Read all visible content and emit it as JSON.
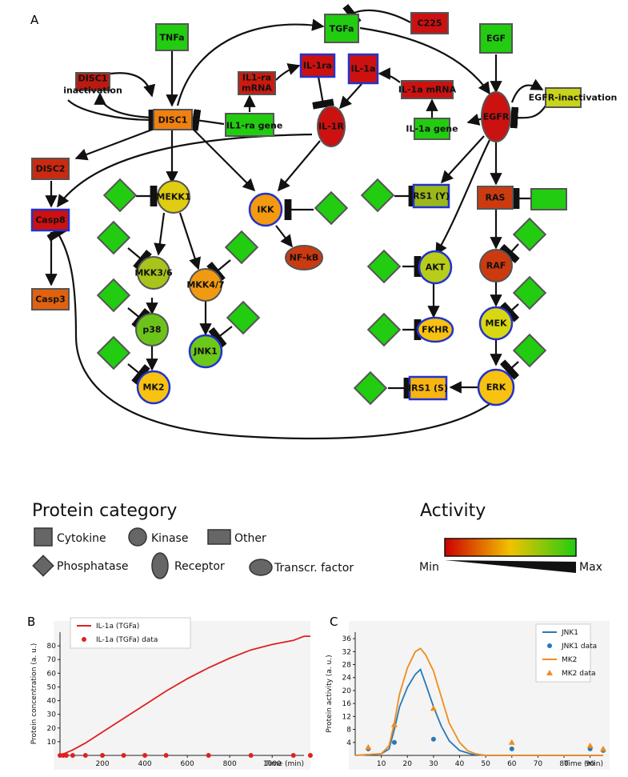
{
  "panels": {
    "a": "A",
    "b": "B",
    "c": "C"
  },
  "nodes": {
    "tnfa": "TNFa",
    "tgfa": "TGFa",
    "c225": "C225",
    "egf": "EGF",
    "disc1_inact": "DISC1\ninactivation",
    "il1ra_mrna": "IL1-ra\nmRNA",
    "il1ra": "IL-1ra",
    "il1a": "IL-1a",
    "il1a_mrna": "IL-1a mRNA",
    "egfr": "EGFR",
    "egfr_inact": "EGFR-inactivation",
    "disc1": "DISC1",
    "il1ra_gene": "IL1-ra gene",
    "il1r": "IL-1R",
    "il1a_gene": "IL-1a gene",
    "disc2": "DISC2",
    "casp8": "Casp8",
    "casp3": "Casp3",
    "mekk1": "MEKK1",
    "ikk": "IKK",
    "nfkb": "NF-kB",
    "irs1y": "IRS1 (Y)",
    "ras": "RAS",
    "mkk36": "MKK3/6",
    "mkk47": "MKK4/7",
    "p38": "p38",
    "jnk1": "JNK1",
    "mk2": "MK2",
    "akt": "AKT",
    "fkhr": "FKHR",
    "raf": "RAF",
    "mek": "MEK",
    "erk": "ERK",
    "irs1s": "IRS1 (S)"
  },
  "legend": {
    "category_title": "Protein category",
    "cytokine": "Cytokine",
    "kinase": "Kinase",
    "other": "Other",
    "phosphatase": "Phosphatase",
    "receptor": "Receptor",
    "tf": "Transcr. factor",
    "activity_title": "Activity",
    "min": "Min",
    "max": "Max"
  },
  "chart_data": [
    {
      "type": "line",
      "title": "",
      "xlabel": "Time (min)",
      "ylabel": "Protein concentration (a. u.)",
      "xlim": [
        0,
        1150
      ],
      "ylim": [
        0,
        90
      ],
      "xticks": [
        200,
        400,
        600,
        800,
        1000
      ],
      "yticks": [
        10,
        20,
        30,
        40,
        50,
        60,
        70,
        80
      ],
      "series": [
        {
          "name": "IL-1a (TGFa)",
          "kind": "line",
          "color": "#e02020",
          "x": [
            0,
            15,
            30,
            60,
            120,
            200,
            300,
            400,
            500,
            600,
            700,
            800,
            900,
            1000,
            1100,
            1150,
            1180
          ],
          "y": [
            0,
            1,
            2,
            4,
            9,
            17,
            27,
            37,
            47,
            56,
            64,
            71,
            77,
            81,
            84,
            87,
            87
          ]
        },
        {
          "name": "IL-1a (TGFa) data",
          "kind": "scatter",
          "color": "#e02020",
          "x": [
            0,
            15,
            30,
            60,
            120,
            200,
            300,
            400,
            500,
            700,
            900,
            1100,
            1180
          ],
          "y": [
            0,
            0,
            0,
            0,
            0,
            0,
            0,
            0,
            0,
            0,
            0,
            0,
            0
          ]
        }
      ]
    },
    {
      "type": "line",
      "title": "",
      "xlabel": "Time (min)",
      "ylabel": "Protein activity (a. u.)",
      "xlim": [
        0,
        95
      ],
      "ylim": [
        0,
        38
      ],
      "xticks": [
        10,
        20,
        30,
        40,
        50,
        60,
        70,
        80,
        90
      ],
      "yticks": [
        4,
        8,
        12,
        16,
        20,
        24,
        28,
        32,
        36
      ],
      "series": [
        {
          "name": "JNK1",
          "kind": "line",
          "color": "#2878b8",
          "x": [
            0,
            10,
            13,
            15,
            17,
            20,
            23,
            25,
            27,
            30,
            33,
            36,
            40,
            45,
            50,
            60,
            90,
            95
          ],
          "y": [
            0,
            0.5,
            2,
            8,
            15,
            21,
            25,
            26.5,
            22,
            15,
            9,
            4.5,
            1.5,
            0.3,
            0,
            0,
            0,
            0
          ]
        },
        {
          "name": "JNK1 data",
          "kind": "scatter",
          "color": "#2878b8",
          "x": [
            5,
            15,
            30,
            60,
            90,
            95
          ],
          "y": [
            2,
            4,
            5,
            2,
            2,
            1.5
          ]
        },
        {
          "name": "MK2",
          "kind": "line",
          "color": "#f08c1e",
          "x": [
            0,
            10,
            13,
            15,
            17,
            20,
            23,
            25,
            27,
            30,
            33,
            36,
            40,
            43,
            46,
            50,
            60,
            95
          ],
          "y": [
            0,
            0.5,
            3,
            10,
            19,
            27,
            32,
            33,
            31,
            26,
            18,
            10,
            4,
            1.5,
            0.5,
            0,
            0,
            0
          ]
        },
        {
          "name": "MK2 data",
          "kind": "scatter-triangle",
          "color": "#f08c1e",
          "x": [
            5,
            15,
            30,
            60,
            90,
            95
          ],
          "y": [
            2.5,
            9.5,
            14.5,
            4,
            3,
            2
          ]
        }
      ]
    }
  ]
}
